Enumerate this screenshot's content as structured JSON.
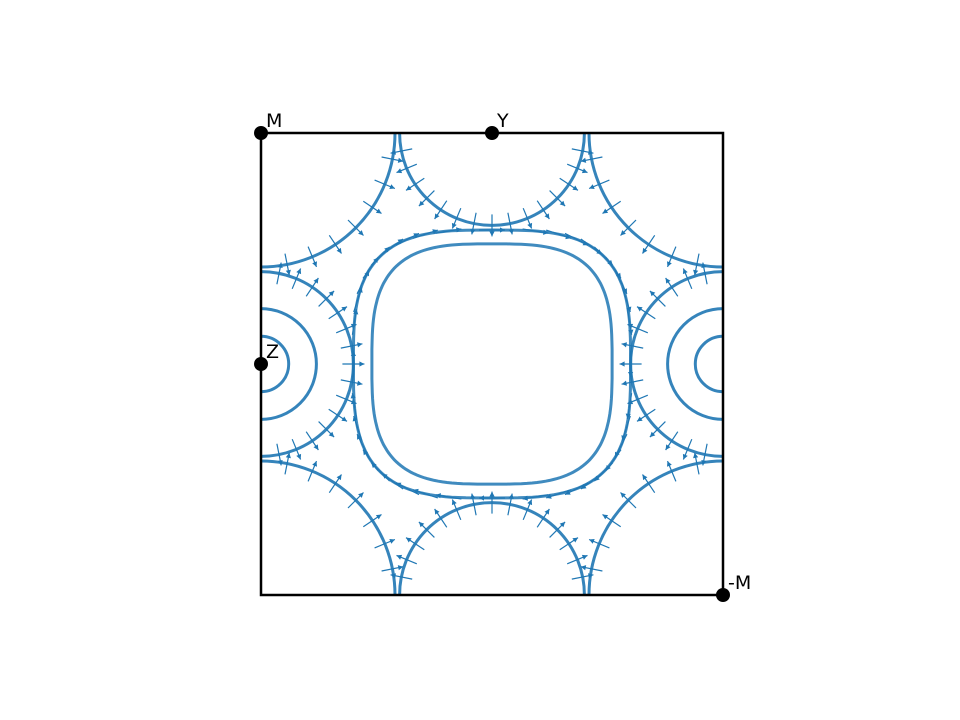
{
  "chart_data": {
    "type": "other",
    "title": "",
    "xlabel": "",
    "ylabel": "",
    "xlim": [
      -1,
      1
    ],
    "ylim": [
      -1,
      1
    ],
    "grid": false,
    "legend": "none",
    "color": "#1f77b4",
    "points": [
      {
        "label": "M",
        "x": -1,
        "y": 1
      },
      {
        "label": "Y",
        "x": 0,
        "y": 1
      },
      {
        "label": "Z",
        "x": -1,
        "y": 0
      },
      {
        "label": "-M",
        "x": 1,
        "y": -1
      }
    ],
    "series": [
      {
        "shape": "rounded-square",
        "cx": 0,
        "cy": 0,
        "rx": 0.52,
        "ry": 0.52
      },
      {
        "shape": "rounded-square",
        "cx": 0,
        "cy": 0,
        "rx": 0.6,
        "ry": 0.58
      },
      {
        "shape": "arc",
        "cx": -1,
        "cy": 0,
        "r": 0.12
      },
      {
        "shape": "arc",
        "cx": -1,
        "cy": 0,
        "r": 0.24
      },
      {
        "shape": "arc",
        "cx": -1,
        "cy": 0,
        "r": 0.4
      },
      {
        "shape": "arc",
        "cx": 1,
        "cy": 0,
        "r": 0.12
      },
      {
        "shape": "arc",
        "cx": 1,
        "cy": 0,
        "r": 0.24
      },
      {
        "shape": "arc",
        "cx": 1,
        "cy": 0,
        "r": 0.4
      },
      {
        "shape": "arc",
        "cx": 0,
        "cy": 1,
        "r": 0.4
      },
      {
        "shape": "arc",
        "cx": 0,
        "cy": -1,
        "r": 0.4
      },
      {
        "shape": "arc",
        "cx": -1,
        "cy": 1,
        "r": 0.58
      },
      {
        "shape": "arc",
        "cx": 1,
        "cy": 1,
        "r": 0.58
      },
      {
        "shape": "arc",
        "cx": -1,
        "cy": -1,
        "r": 0.58
      },
      {
        "shape": "arc",
        "cx": 1,
        "cy": -1,
        "r": 0.58
      }
    ]
  }
}
